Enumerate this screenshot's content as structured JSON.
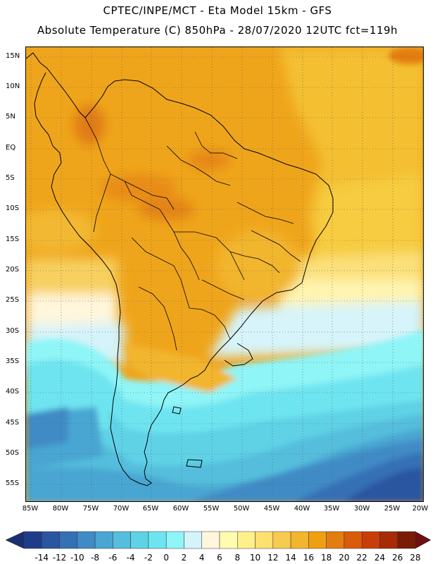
{
  "header": {
    "line1": "CPTEC/INPE/MCT -  Eta Model 15km - GFS",
    "line2": "Absolute Temperature (C) 850hPa - 28/07/2020 12UTC fct=119h"
  },
  "map": {
    "lat_labels": [
      "15N",
      "10N",
      "5N",
      "EQ",
      "5S",
      "10S",
      "15S",
      "20S",
      "25S",
      "30S",
      "35S",
      "40S",
      "45S",
      "50S",
      "55S"
    ],
    "lon_labels": [
      "85W",
      "80W",
      "75W",
      "70W",
      "65W",
      "60W",
      "55W",
      "50W",
      "45W",
      "40W",
      "35W",
      "30W",
      "25W",
      "20W"
    ]
  },
  "colorbar": {
    "labels": [
      "-14",
      "-12",
      "-10",
      "-8",
      "-6",
      "-4",
      "-2",
      "0",
      "2",
      "4",
      "6",
      "8",
      "10",
      "12",
      "14",
      "16",
      "18",
      "20",
      "22",
      "24",
      "26",
      "28"
    ],
    "colors": [
      "#1f3c8a",
      "#2a55a0",
      "#3470b5",
      "#3f8bc6",
      "#4aa6d2",
      "#55bedc",
      "#5fd2e6",
      "#6ee4f0",
      "#8ff5f7",
      "#d4f3fa",
      "#fff6dc",
      "#fffbb0",
      "#fff08a",
      "#fde070",
      "#f7cb4f",
      "#f2b52e",
      "#eda012",
      "#e37d10",
      "#d95b0c",
      "#c93e08",
      "#a82a06",
      "#7a1b04"
    ],
    "under_color": "#1a2f70",
    "over_color": "#6e0f10"
  }
}
